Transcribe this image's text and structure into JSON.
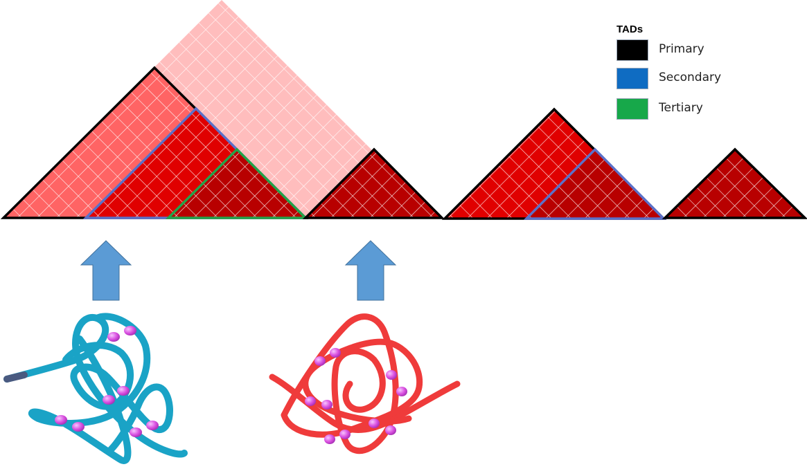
{
  "legend": {
    "title": "TADs",
    "items": [
      {
        "label": "Primary",
        "color": "#000000"
      },
      {
        "label": "Secondary",
        "color": "#0f6cc2"
      },
      {
        "label": "Tertiary",
        "color": "#17a84a"
      }
    ]
  },
  "colors": {
    "large_domain_fill": "#ffbdbd",
    "primary_fill_light": "#ff6464",
    "secondary_fill": "#e00000",
    "tertiary_fill": "#b80000",
    "primary_outline": "#000000",
    "secondary_outline": "#5b70c8",
    "tertiary_outline": "#22a34a",
    "arrow": "#5b9bd5",
    "chromatin_left": "#1aa3c6",
    "chromatin_right": "#ef3b3b",
    "bead": "#d94fe0"
  }
}
